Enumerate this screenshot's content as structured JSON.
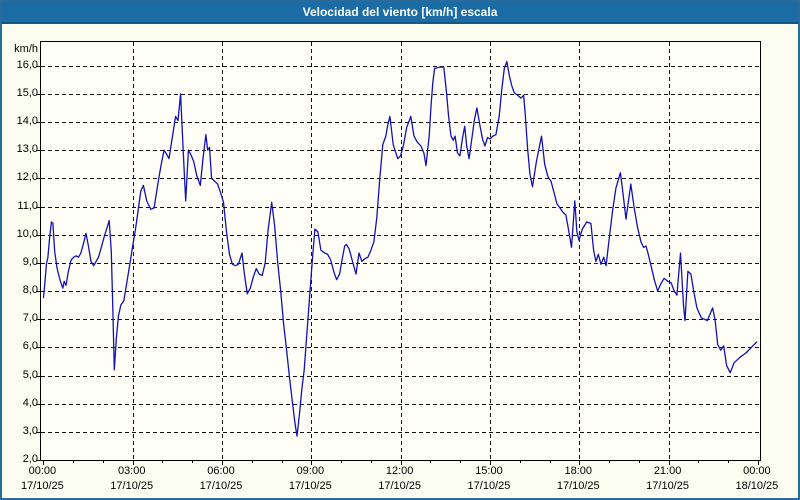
{
  "window": {
    "title": "Velocidad del viento [km/h] escala"
  },
  "colors": {
    "titlebar_bg": "#1b6ba4",
    "window_border": "#2a6b9b",
    "outer_bg": "#fbfdf0",
    "plot_bg": "#fffff8",
    "grid": "#111111",
    "line": "#1212b4",
    "text": "#000000"
  },
  "chart_data": {
    "type": "line",
    "title": "Velocidad del viento [km/h] escala",
    "ylabel": "km/h",
    "xlabel": "",
    "series_name": "Velocidad del viento",
    "grid": "dashed",
    "legend": "none",
    "ylim": [
      2,
      16
    ],
    "xlim_hours": [
      0,
      24
    ],
    "y_ticks": [
      {
        "value": 2,
        "label": "2,0"
      },
      {
        "value": 3,
        "label": "3,0"
      },
      {
        "value": 4,
        "label": "4,0"
      },
      {
        "value": 5,
        "label": "5,0"
      },
      {
        "value": 6,
        "label": "6,0"
      },
      {
        "value": 7,
        "label": "7,0"
      },
      {
        "value": 8,
        "label": "8,0"
      },
      {
        "value": 9,
        "label": "9,0"
      },
      {
        "value": 10,
        "label": "10,0"
      },
      {
        "value": 11,
        "label": "11,0"
      },
      {
        "value": 12,
        "label": "12,0"
      },
      {
        "value": 13,
        "label": "13,0"
      },
      {
        "value": 14,
        "label": "14,0"
      },
      {
        "value": 15,
        "label": "15,0"
      },
      {
        "value": 16,
        "label": "16,0"
      }
    ],
    "x_ticks": [
      {
        "hour": 0,
        "time": "00:00",
        "date": "17/10/25"
      },
      {
        "hour": 3,
        "time": "03:00",
        "date": "17/10/25"
      },
      {
        "hour": 6,
        "time": "06:00",
        "date": "17/10/25"
      },
      {
        "hour": 9,
        "time": "09:00",
        "date": "17/10/25"
      },
      {
        "hour": 12,
        "time": "12:00",
        "date": "17/10/25"
      },
      {
        "hour": 15,
        "time": "15:00",
        "date": "17/10/25"
      },
      {
        "hour": 18,
        "time": "18:00",
        "date": "17/10/25"
      },
      {
        "hour": 21,
        "time": "21:00",
        "date": "17/10/25"
      },
      {
        "hour": 24,
        "time": "00:00",
        "date": "18/10/25"
      }
    ],
    "points": [
      [
        0.0,
        7.75
      ],
      [
        0.05,
        8.3
      ],
      [
        0.1,
        8.95
      ],
      [
        0.15,
        9.2
      ],
      [
        0.2,
        9.8
      ],
      [
        0.27,
        10.45
      ],
      [
        0.32,
        10.4
      ],
      [
        0.38,
        9.4
      ],
      [
        0.46,
        8.8
      ],
      [
        0.53,
        8.5
      ],
      [
        0.6,
        8.25
      ],
      [
        0.65,
        8.1
      ],
      [
        0.7,
        8.35
      ],
      [
        0.76,
        8.2
      ],
      [
        0.84,
        8.7
      ],
      [
        0.93,
        9.1
      ],
      [
        1.02,
        9.2
      ],
      [
        1.1,
        9.25
      ],
      [
        1.18,
        9.2
      ],
      [
        1.26,
        9.35
      ],
      [
        1.35,
        9.7
      ],
      [
        1.43,
        10.05
      ],
      [
        1.51,
        9.6
      ],
      [
        1.6,
        9.05
      ],
      [
        1.69,
        8.9
      ],
      [
        1.77,
        9.05
      ],
      [
        1.85,
        9.2
      ],
      [
        1.93,
        9.5
      ],
      [
        2.05,
        9.95
      ],
      [
        2.14,
        10.25
      ],
      [
        2.21,
        10.5
      ],
      [
        2.28,
        9.4
      ],
      [
        2.33,
        7.4
      ],
      [
        2.38,
        5.2
      ],
      [
        2.45,
        6.3
      ],
      [
        2.52,
        7.1
      ],
      [
        2.6,
        7.5
      ],
      [
        2.7,
        7.65
      ],
      [
        2.8,
        8.3
      ],
      [
        2.92,
        9.05
      ],
      [
        3.0,
        9.6
      ],
      [
        3.08,
        10.1
      ],
      [
        3.16,
        10.7
      ],
      [
        3.27,
        11.55
      ],
      [
        3.36,
        11.75
      ],
      [
        3.47,
        11.2
      ],
      [
        3.56,
        11.0
      ],
      [
        3.61,
        10.9
      ],
      [
        3.72,
        10.95
      ],
      [
        3.83,
        11.7
      ],
      [
        3.94,
        12.4
      ],
      [
        4.05,
        13.0
      ],
      [
        4.14,
        12.85
      ],
      [
        4.22,
        12.7
      ],
      [
        4.33,
        13.45
      ],
      [
        4.44,
        14.2
      ],
      [
        4.52,
        14.05
      ],
      [
        4.61,
        15.0
      ],
      [
        4.7,
        12.9
      ],
      [
        4.78,
        11.2
      ],
      [
        4.87,
        13.0
      ],
      [
        4.95,
        12.85
      ],
      [
        5.05,
        12.6
      ],
      [
        5.15,
        12.1
      ],
      [
        5.27,
        11.75
      ],
      [
        5.36,
        12.7
      ],
      [
        5.46,
        13.55
      ],
      [
        5.52,
        13.0
      ],
      [
        5.58,
        13.1
      ],
      [
        5.65,
        12.0
      ],
      [
        5.75,
        11.9
      ],
      [
        5.85,
        11.8
      ],
      [
        5.95,
        11.5
      ],
      [
        6.05,
        11.15
      ],
      [
        6.15,
        10.1
      ],
      [
        6.25,
        9.3
      ],
      [
        6.35,
        8.95
      ],
      [
        6.45,
        8.9
      ],
      [
        6.55,
        8.95
      ],
      [
        6.67,
        9.35
      ],
      [
        6.75,
        8.6
      ],
      [
        6.85,
        7.9
      ],
      [
        6.95,
        8.1
      ],
      [
        7.05,
        8.5
      ],
      [
        7.15,
        8.8
      ],
      [
        7.25,
        8.6
      ],
      [
        7.35,
        8.55
      ],
      [
        7.45,
        9.0
      ],
      [
        7.55,
        10.2
      ],
      [
        7.67,
        11.15
      ],
      [
        7.77,
        10.3
      ],
      [
        7.87,
        9.0
      ],
      [
        7.97,
        8.0
      ],
      [
        8.07,
        6.8
      ],
      [
        8.17,
        5.9
      ],
      [
        8.27,
        4.9
      ],
      [
        8.37,
        4.0
      ],
      [
        8.45,
        3.3
      ],
      [
        8.52,
        2.85
      ],
      [
        8.6,
        3.6
      ],
      [
        8.68,
        4.5
      ],
      [
        8.76,
        5.2
      ],
      [
        8.85,
        6.5
      ],
      [
        8.95,
        7.9
      ],
      [
        9.05,
        9.3
      ],
      [
        9.12,
        10.2
      ],
      [
        9.22,
        10.1
      ],
      [
        9.32,
        9.45
      ],
      [
        9.45,
        9.35
      ],
      [
        9.55,
        9.3
      ],
      [
        9.65,
        9.1
      ],
      [
        9.75,
        8.7
      ],
      [
        9.85,
        8.4
      ],
      [
        9.95,
        8.6
      ],
      [
        10.03,
        9.1
      ],
      [
        10.12,
        9.6
      ],
      [
        10.18,
        9.65
      ],
      [
        10.27,
        9.5
      ],
      [
        10.37,
        9.1
      ],
      [
        10.5,
        8.6
      ],
      [
        10.6,
        9.35
      ],
      [
        10.7,
        9.05
      ],
      [
        10.8,
        9.15
      ],
      [
        10.9,
        9.2
      ],
      [
        11.0,
        9.45
      ],
      [
        11.1,
        9.75
      ],
      [
        11.2,
        10.6
      ],
      [
        11.3,
        12.0
      ],
      [
        11.4,
        13.2
      ],
      [
        11.5,
        13.5
      ],
      [
        11.57,
        13.9
      ],
      [
        11.64,
        14.2
      ],
      [
        11.75,
        13.2
      ],
      [
        11.9,
        12.7
      ],
      [
        12.0,
        12.8
      ],
      [
        12.1,
        13.2
      ],
      [
        12.2,
        13.8
      ],
      [
        12.34,
        14.2
      ],
      [
        12.45,
        13.5
      ],
      [
        12.55,
        13.3
      ],
      [
        12.68,
        13.15
      ],
      [
        12.78,
        12.9
      ],
      [
        12.85,
        12.45
      ],
      [
        12.96,
        13.5
      ],
      [
        13.02,
        14.55
      ],
      [
        13.08,
        15.4
      ],
      [
        13.14,
        15.9
      ],
      [
        13.3,
        15.95
      ],
      [
        13.45,
        15.95
      ],
      [
        13.54,
        15.05
      ],
      [
        13.61,
        14.2
      ],
      [
        13.69,
        13.5
      ],
      [
        13.77,
        13.35
      ],
      [
        13.83,
        13.5
      ],
      [
        13.91,
        12.9
      ],
      [
        13.99,
        12.8
      ],
      [
        14.08,
        13.45
      ],
      [
        14.15,
        13.85
      ],
      [
        14.22,
        13.15
      ],
      [
        14.3,
        12.7
      ],
      [
        14.39,
        13.4
      ],
      [
        14.48,
        14.1
      ],
      [
        14.56,
        14.5
      ],
      [
        14.66,
        13.9
      ],
      [
        14.75,
        13.4
      ],
      [
        14.83,
        13.15
      ],
      [
        14.92,
        13.45
      ],
      [
        15.0,
        13.4
      ],
      [
        15.1,
        13.5
      ],
      [
        15.2,
        13.55
      ],
      [
        15.31,
        14.2
      ],
      [
        15.39,
        15.1
      ],
      [
        15.48,
        15.9
      ],
      [
        15.57,
        16.15
      ],
      [
        15.65,
        15.65
      ],
      [
        15.73,
        15.3
      ],
      [
        15.81,
        15.05
      ],
      [
        15.93,
        14.95
      ],
      [
        16.04,
        14.85
      ],
      [
        16.13,
        14.95
      ],
      [
        16.18,
        14.35
      ],
      [
        16.26,
        13.1
      ],
      [
        16.34,
        12.15
      ],
      [
        16.43,
        11.7
      ],
      [
        16.56,
        12.6
      ],
      [
        16.73,
        13.5
      ],
      [
        16.84,
        12.5
      ],
      [
        16.95,
        12.05
      ],
      [
        17.05,
        11.9
      ],
      [
        17.15,
        11.5
      ],
      [
        17.25,
        11.1
      ],
      [
        17.35,
        10.95
      ],
      [
        17.45,
        10.8
      ],
      [
        17.55,
        10.7
      ],
      [
        17.65,
        10.1
      ],
      [
        17.74,
        9.55
      ],
      [
        17.85,
        11.2
      ],
      [
        17.92,
        10.1
      ],
      [
        17.99,
        9.8
      ],
      [
        18.1,
        10.2
      ],
      [
        18.25,
        10.45
      ],
      [
        18.39,
        10.4
      ],
      [
        18.48,
        9.45
      ],
      [
        18.56,
        9.05
      ],
      [
        18.64,
        9.3
      ],
      [
        18.73,
        8.95
      ],
      [
        18.82,
        9.2
      ],
      [
        18.9,
        8.9
      ],
      [
        19.0,
        9.8
      ],
      [
        19.12,
        10.85
      ],
      [
        19.23,
        11.65
      ],
      [
        19.38,
        12.2
      ],
      [
        19.46,
        11.55
      ],
      [
        19.57,
        10.55
      ],
      [
        19.73,
        11.8
      ],
      [
        19.85,
        10.9
      ],
      [
        19.96,
        10.25
      ],
      [
        20.07,
        9.75
      ],
      [
        20.16,
        9.55
      ],
      [
        20.24,
        9.6
      ],
      [
        20.32,
        9.3
      ],
      [
        20.41,
        8.9
      ],
      [
        20.52,
        8.4
      ],
      [
        20.63,
        8.0
      ],
      [
        20.74,
        8.25
      ],
      [
        20.85,
        8.45
      ],
      [
        20.97,
        8.35
      ],
      [
        21.08,
        8.3
      ],
      [
        21.19,
        8.0
      ],
      [
        21.28,
        7.85
      ],
      [
        21.4,
        9.35
      ],
      [
        21.5,
        7.5
      ],
      [
        21.55,
        6.95
      ],
      [
        21.65,
        8.7
      ],
      [
        21.75,
        8.6
      ],
      [
        21.85,
        7.95
      ],
      [
        21.95,
        7.4
      ],
      [
        22.1,
        7.05
      ],
      [
        22.2,
        7.0
      ],
      [
        22.3,
        6.95
      ],
      [
        22.4,
        7.2
      ],
      [
        22.48,
        7.4
      ],
      [
        22.56,
        7.0
      ],
      [
        22.65,
        6.1
      ],
      [
        22.75,
        5.9
      ],
      [
        22.85,
        6.05
      ],
      [
        22.95,
        5.35
      ],
      [
        23.07,
        5.1
      ],
      [
        23.2,
        5.45
      ],
      [
        23.4,
        5.65
      ],
      [
        23.6,
        5.8
      ],
      [
        23.78,
        6.0
      ],
      [
        23.97,
        6.2
      ]
    ]
  }
}
